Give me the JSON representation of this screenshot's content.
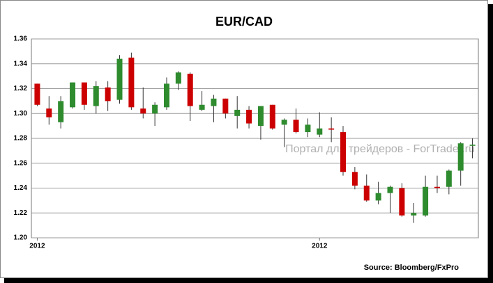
{
  "chart_data": {
    "type": "candlestick",
    "title": "EUR/CAD",
    "categories": [
      "2012",
      null,
      null,
      null,
      null,
      null,
      null,
      null,
      null,
      null,
      null,
      null,
      null,
      null,
      null,
      null,
      null,
      null,
      null,
      null,
      null,
      null,
      null,
      null,
      "2012",
      null,
      null,
      null,
      null,
      null,
      null,
      null,
      null,
      null,
      null,
      null,
      null,
      null
    ],
    "series": [
      {
        "open": [
          1.324,
          1.304,
          1.293,
          1.305,
          1.325,
          1.306,
          1.321,
          1.311,
          1.345,
          1.304,
          1.3,
          1.305,
          1.324,
          1.332,
          1.303,
          1.306,
          1.312,
          1.298,
          1.303,
          1.29,
          1.307,
          1.291,
          1.295,
          1.285,
          1.283,
          1.288,
          1.285,
          1.253,
          1.242,
          1.23,
          1.236,
          1.24,
          1.218,
          1.218,
          1.241,
          1.241,
          1.254,
          1.274
        ],
        "high": [
          1.324,
          1.314,
          1.314,
          1.325,
          1.325,
          1.326,
          1.326,
          1.347,
          1.349,
          1.321,
          1.309,
          1.329,
          1.334,
          1.333,
          1.318,
          1.315,
          1.312,
          1.314,
          1.306,
          1.306,
          1.307,
          1.296,
          1.304,
          1.296,
          1.301,
          1.297,
          1.29,
          1.257,
          1.251,
          1.245,
          1.242,
          1.244,
          1.228,
          1.25,
          1.25,
          1.255,
          1.277,
          1.28
        ],
        "low": [
          1.306,
          1.291,
          1.288,
          1.304,
          1.303,
          1.3,
          1.302,
          1.308,
          1.303,
          1.296,
          1.29,
          1.303,
          1.319,
          1.294,
          1.302,
          1.293,
          1.296,
          1.288,
          1.288,
          1.279,
          1.287,
          1.273,
          1.284,
          1.281,
          1.281,
          1.277,
          1.25,
          1.239,
          1.229,
          1.227,
          1.22,
          1.217,
          1.212,
          1.217,
          1.236,
          1.235,
          1.242,
          1.264
        ],
        "close": [
          1.307,
          1.297,
          1.31,
          1.325,
          1.307,
          1.322,
          1.31,
          1.344,
          1.305,
          1.3,
          1.307,
          1.324,
          1.333,
          1.306,
          1.307,
          1.312,
          1.3,
          1.303,
          1.292,
          1.306,
          1.288,
          1.295,
          1.285,
          1.291,
          1.288,
          1.287,
          1.253,
          1.242,
          1.23,
          1.236,
          1.241,
          1.218,
          1.22,
          1.241,
          1.24,
          1.254,
          1.276,
          1.275
        ]
      }
    ],
    "up_color": "#2e8b2e",
    "down_color": "#cc0000",
    "ylim": [
      1.2,
      1.36
    ],
    "yticks": [
      {
        "value": 1.2,
        "label": "1.20"
      },
      1.22,
      1.24,
      1.26,
      1.28,
      {
        "value": 1.3,
        "label": "1.30"
      },
      1.32,
      1.34,
      1.36
    ],
    "grid": true,
    "watermark": "Портал для трейдеров - ForTrader.ru",
    "source": "Source: Bloomberg/FxPro"
  }
}
